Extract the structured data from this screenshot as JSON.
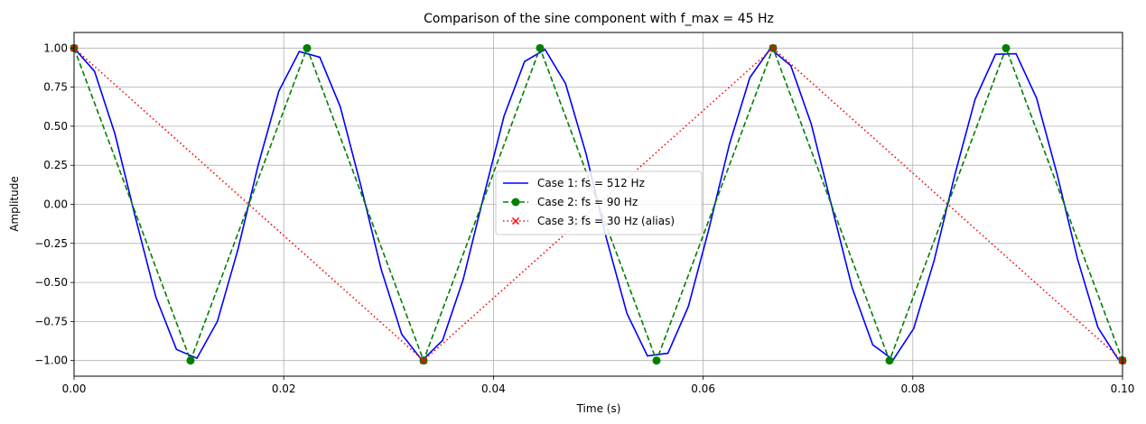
{
  "chart_data": {
    "type": "line",
    "title": "Comparison of the sine component with f_max = 45 Hz",
    "xlabel": "Time (s)",
    "ylabel": "Amplitude",
    "xlim": [
      0,
      0.1
    ],
    "ylim": [
      -1.1,
      1.1
    ],
    "grid": true,
    "legend_position": "center",
    "x_ticks": [
      0,
      0.02,
      0.04,
      0.06,
      0.08,
      0.1
    ],
    "x_tick_labels": [
      "0.00",
      "0.02",
      "0.04",
      "0.06",
      "0.08",
      "0.10"
    ],
    "y_ticks": [
      1.0,
      0.75,
      0.5,
      0.25,
      0.0,
      -0.25,
      -0.5,
      -0.75,
      -1.0
    ],
    "y_tick_labels": [
      "1.00",
      "0.75",
      "0.50",
      "0.25",
      "0.00",
      "−0.25",
      "−0.50",
      "−0.75",
      "−1.00"
    ],
    "series": [
      {
        "name": "Case 1: fs = 512 Hz",
        "color": "#0000ff",
        "line_style": "solid",
        "marker": "none",
        "sample_rate": 512,
        "frequency": 45,
        "x_range": [
          0,
          0.1
        ]
      },
      {
        "name": "Case 2: fs = 90 Hz",
        "color": "#008000",
        "line_style": "dashed",
        "marker": "circle",
        "sample_rate": 90,
        "frequency": 45,
        "x_range": [
          0,
          0.1
        ]
      },
      {
        "name": "Case 3: fs = 30 Hz (alias)",
        "color": "#ff0000",
        "line_style": "dotted",
        "marker": "x",
        "sample_rate": 30,
        "frequency": 45,
        "x_range": [
          0,
          0.1
        ]
      }
    ]
  }
}
